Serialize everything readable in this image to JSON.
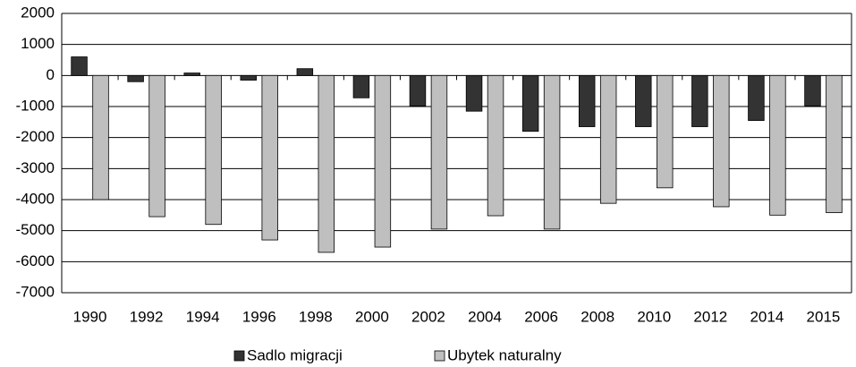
{
  "chart_data": {
    "type": "bar",
    "categories": [
      "1990",
      "1992",
      "1994",
      "1996",
      "1998",
      "2000",
      "2002",
      "2004",
      "2006",
      "2008",
      "2010",
      "2012",
      "2014",
      "2015"
    ],
    "series": [
      {
        "name": "Sadlo migracji",
        "color": "#333333",
        "values": [
          600,
          -200,
          80,
          -150,
          220,
          -720,
          -980,
          -1150,
          -1800,
          -1650,
          -1650,
          -1650,
          -1450,
          -980
        ]
      },
      {
        "name": "Ubytek naturalny",
        "color": "#bfbfbf",
        "values": [
          -4000,
          -4550,
          -4800,
          -5300,
          -5700,
          -5530,
          -4950,
          -4520,
          -4950,
          -4120,
          -3620,
          -4230,
          -4500,
          -4420
        ]
      }
    ],
    "ylim": [
      -7000,
      2000
    ],
    "yticks": [
      -7000,
      -6000,
      -5000,
      -4000,
      -3000,
      -2000,
      -1000,
      0,
      1000,
      2000
    ],
    "grid": true,
    "legend": "bottom"
  }
}
